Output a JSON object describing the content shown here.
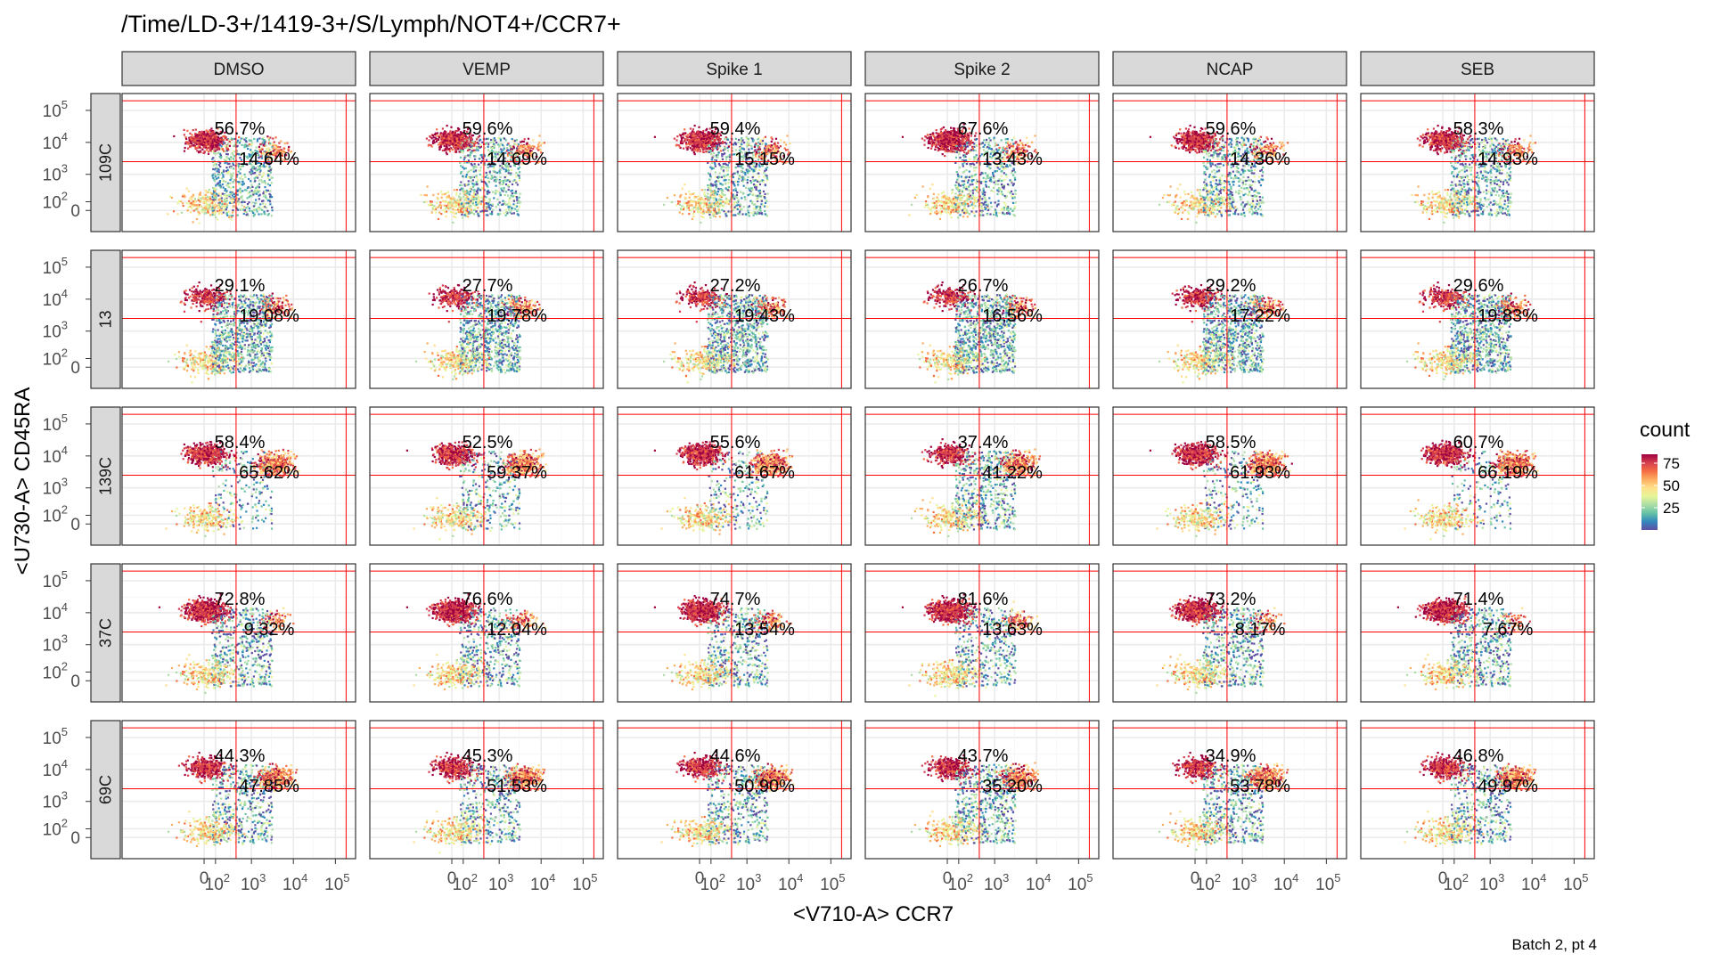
{
  "figure": {
    "title": "/Time/LD-3+/1419-3+/S/Lymph/NOT4+/CCR7+",
    "caption": "Batch 2, pt 4",
    "colors": {
      "density": [
        "#5e4fa2",
        "#3288bd",
        "#66c2a5",
        "#abdda4",
        "#e6f598",
        "#fee08b",
        "#fdae61",
        "#f46d43",
        "#d53e4f",
        "#9e0142"
      ],
      "gate": "#ff0000",
      "strip": "#d9d9d9",
      "grid": "#ebebeb"
    }
  },
  "chart_data": {
    "type": "scatter",
    "title": "/Time/LD-3+/1419-3+/S/Lymph/NOT4+/CCR7+",
    "xlabel": "<V710-A> CCR7",
    "ylabel": "<U730-A> CD45RA",
    "x_tick_labels": [
      {
        "label": "0",
        "value": 0
      },
      {
        "label": "10",
        "exp": "2",
        "value": 100
      },
      {
        "label": "10",
        "exp": "3",
        "value": 1000
      },
      {
        "label": "10",
        "exp": "4",
        "value": 10000
      },
      {
        "label": "10",
        "exp": "5",
        "value": 100000
      }
    ],
    "y_tick_labels": [
      {
        "label": "0",
        "value": 0
      },
      {
        "label": "10",
        "exp": "2",
        "value": 100
      },
      {
        "label": "10",
        "exp": "3",
        "value": 1000
      },
      {
        "label": "10",
        "exp": "4",
        "value": 10000
      },
      {
        "label": "10",
        "exp": "5",
        "value": 100000
      }
    ],
    "x_scale": "biexponential",
    "y_scale": "biexponential",
    "grid": true,
    "legend": {
      "title": "count",
      "placement": "right",
      "ticks": [
        {
          "label": "25",
          "value": 25
        },
        {
          "label": "50",
          "value": 50
        },
        {
          "label": "75",
          "value": 75
        }
      ],
      "range": [
        0,
        85
      ]
    },
    "gates": {
      "x": 420,
      "y": 2500,
      "x_max": 180000,
      "y_max": 200000
    },
    "columns": [
      "DMSO",
      "VEMP",
      "Spike 1",
      "Spike 2",
      "NCAP",
      "SEB"
    ],
    "rows": [
      "109C",
      "13",
      "139C",
      "37C",
      "69C"
    ],
    "upper_left_pct": [
      [
        "56.7%",
        "59.6%",
        "59.4%",
        "67.6%",
        "59.6%",
        "58.3%"
      ],
      [
        "29.1%",
        "27.7%",
        "27.2%",
        "26.7%",
        "29.2%",
        "29.6%"
      ],
      [
        "58.4%",
        "52.5%",
        "55.6%",
        "37.4%",
        "58.5%",
        "60.7%"
      ],
      [
        "72.8%",
        "76.6%",
        "74.7%",
        "81.6%",
        "73.2%",
        "71.4%"
      ],
      [
        "44.3%",
        "45.3%",
        "44.6%",
        "43.7%",
        "34.9%",
        "46.8%"
      ]
    ],
    "upper_right_pct": [
      [
        "14.64%",
        "14.69%",
        "15.15%",
        "13.43%",
        "14.36%",
        "14.93%"
      ],
      [
        "19.08%",
        "19.78%",
        "19.43%",
        "16.56%",
        "17.22%",
        "19.83%"
      ],
      [
        "65.62%",
        "59.37%",
        "61.67%",
        "41.22%",
        "61.93%",
        "66.19%"
      ],
      [
        "9.32%",
        "12.04%",
        "13.54%",
        "13.63%",
        "8.17%",
        "7.67%"
      ],
      [
        "47.85%",
        "51.53%",
        "50.90%",
        "35.20%",
        "53.78%",
        "49.97%"
      ]
    ]
  }
}
